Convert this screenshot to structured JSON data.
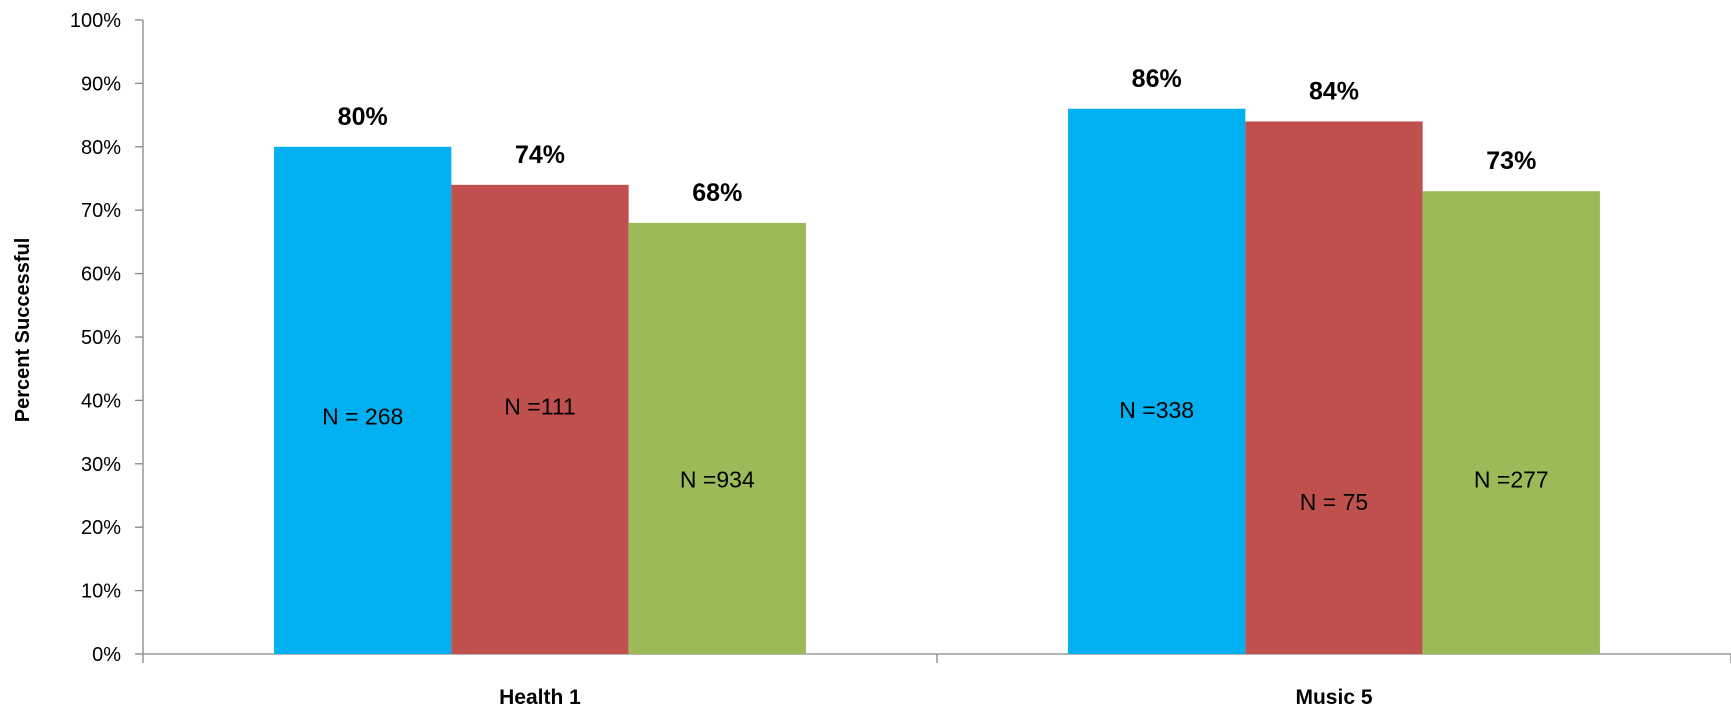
{
  "chart_data": {
    "type": "bar",
    "ylabel": "Percent Successful",
    "ylim": [
      0,
      100
    ],
    "y_ticks": [
      "0%",
      "10%",
      "20%",
      "30%",
      "40%",
      "50%",
      "60%",
      "70%",
      "80%",
      "90%",
      "100%"
    ],
    "categories": [
      "Health 1",
      "Music 5"
    ],
    "series": [
      {
        "color": "#00b0f0",
        "values": [
          80,
          86
        ],
        "value_labels": [
          "80%",
          "86%"
        ],
        "n_labels": [
          "N = 268",
          "N =338"
        ],
        "n_label_y": [
          37.5,
          38.5
        ]
      },
      {
        "color": "#c0504d",
        "values": [
          74,
          84
        ],
        "value_labels": [
          "74%",
          "84%"
        ],
        "n_labels": [
          "N =111",
          "N = 75"
        ],
        "n_label_y": [
          39,
          24
        ]
      },
      {
        "color": "#9bbb59",
        "values": [
          68,
          73
        ],
        "value_labels": [
          "68%",
          "73%"
        ],
        "n_labels": [
          "N =934",
          "N =277"
        ],
        "n_label_y": [
          27.5,
          27.5
        ]
      }
    ],
    "grid": false,
    "legend": "none"
  }
}
